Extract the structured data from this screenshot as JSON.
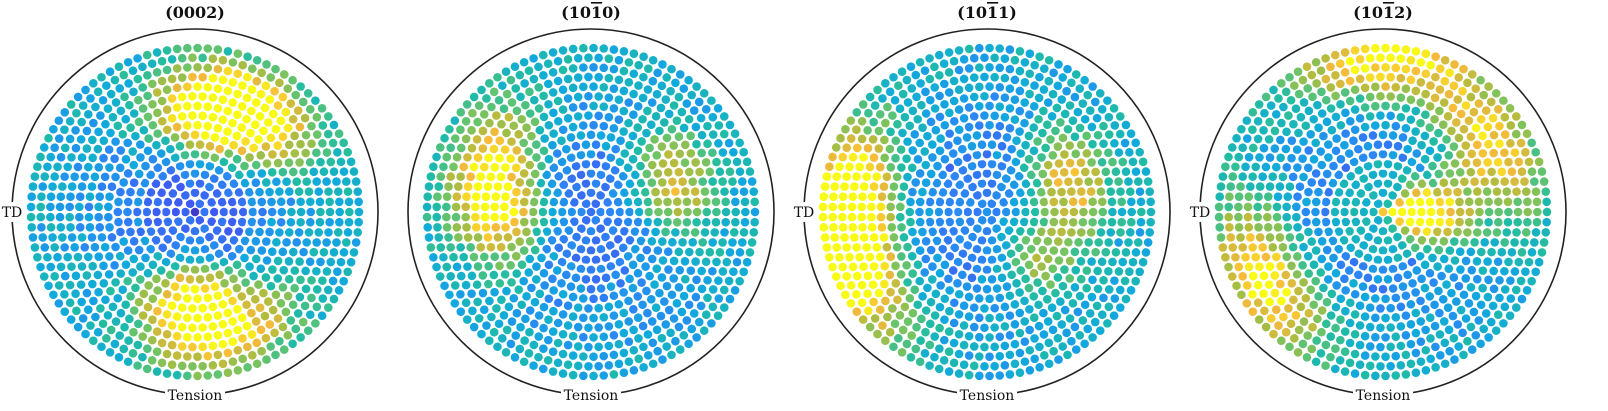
{
  "chart_data": [
    {
      "type": "scatter",
      "title": "(0002)",
      "title_parts": [
        {
          "t": "(0002)",
          "bar": false
        }
      ],
      "left_label": "TD",
      "bottom_label": "Tension",
      "rings": 17,
      "hotspots": [
        {
          "azimuth_deg": 82,
          "ring": 10,
          "intensity": 0.95
        },
        {
          "azimuth_deg": 60,
          "ring": 12,
          "intensity": 0.85
        },
        {
          "azimuth_deg": 268,
          "ring": 9,
          "intensity": 0.85
        },
        {
          "azimuth_deg": 285,
          "ring": 13,
          "intensity": 0.7
        }
      ],
      "center_value": 0.05
    },
    {
      "type": "scatter",
      "title": "(10ī0)",
      "title_parts": [
        {
          "t": "(10",
          "bar": false
        },
        {
          "t": "1",
          "bar": true
        },
        {
          "t": "0)",
          "bar": false
        }
      ],
      "left_label": "",
      "bottom_label": "Tension",
      "rings": 17,
      "hotspots": [
        {
          "azimuth_deg": 180,
          "ring": 9,
          "intensity": 0.85
        },
        {
          "azimuth_deg": 20,
          "ring": 9,
          "intensity": 0.7
        },
        {
          "azimuth_deg": 150,
          "ring": 12,
          "intensity": 0.6
        }
      ],
      "center_value": 0.2
    },
    {
      "type": "scatter",
      "title": "(10ī1)",
      "title_parts": [
        {
          "t": "(10",
          "bar": false
        },
        {
          "t": "1",
          "bar": true
        },
        {
          "t": "1)",
          "bar": false
        }
      ],
      "left_label": "TD",
      "bottom_label": "Tension",
      "rings": 17,
      "hotspots": [
        {
          "azimuth_deg": 178,
          "ring": 14,
          "intensity": 0.95
        },
        {
          "azimuth_deg": 20,
          "ring": 9,
          "intensity": 0.75
        },
        {
          "azimuth_deg": 200,
          "ring": 15,
          "intensity": 0.8
        },
        {
          "azimuth_deg": 320,
          "ring": 7,
          "intensity": 0.55
        }
      ],
      "center_value": 0.3
    },
    {
      "type": "scatter",
      "title": "(10ī2)",
      "title_parts": [
        {
          "t": "(10",
          "bar": false
        },
        {
          "t": "1",
          "bar": true
        },
        {
          "t": "2)",
          "bar": false
        }
      ],
      "left_label": "TD",
      "bottom_label": "Tension",
      "rings": 17,
      "hotspots": [
        {
          "azimuth_deg": 0,
          "ring": 5,
          "intensity": 0.95
        },
        {
          "azimuth_deg": 210,
          "ring": 14,
          "intensity": 0.9
        },
        {
          "azimuth_deg": 90,
          "ring": 16,
          "intensity": 0.85
        },
        {
          "azimuth_deg": 30,
          "ring": 13,
          "intensity": 0.75
        },
        {
          "azimuth_deg": 0,
          "ring": 0,
          "intensity": 0.9
        }
      ],
      "center_value": 0.9
    }
  ],
  "colormap": [
    "#3e26a8",
    "#4253f2",
    "#2c86f5",
    "#10aadc",
    "#21bca4",
    "#6ec466",
    "#b2bc3e",
    "#f7ba3c",
    "#f9fb15"
  ]
}
